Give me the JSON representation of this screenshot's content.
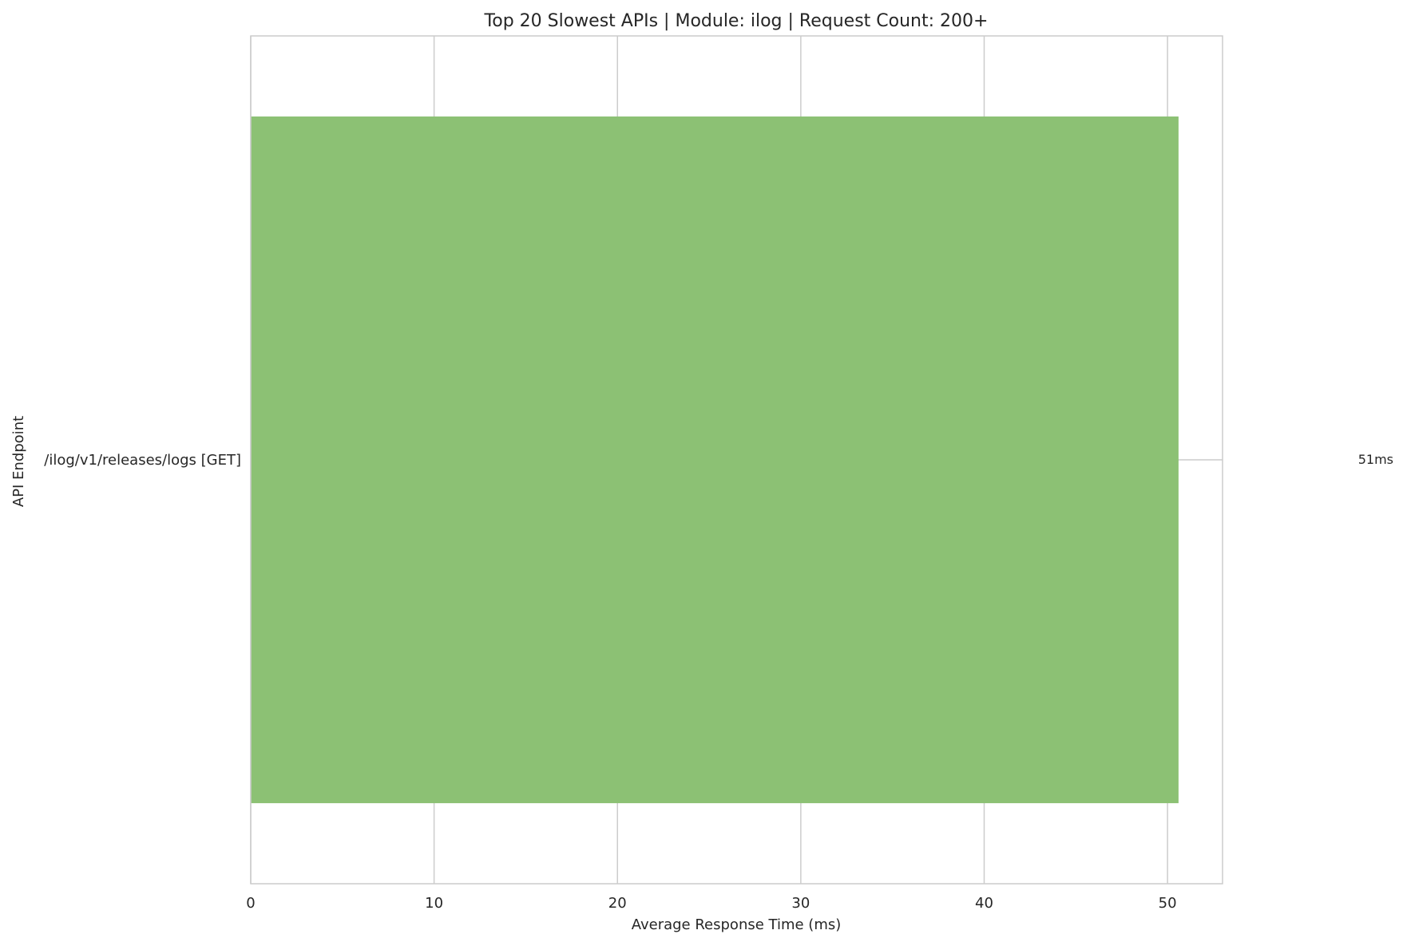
{
  "chart_data": {
    "type": "bar",
    "orientation": "horizontal",
    "title": "Top 20 Slowest APIs | Module: ilog | Request Count: 200+",
    "xlabel": "Average Response Time (ms)",
    "ylabel": "API Endpoint",
    "categories": [
      "/ilog/v1/releases/logs [GET]"
    ],
    "values": [
      50.6
    ],
    "value_labels": [
      "51ms"
    ],
    "xlim": [
      0,
      53
    ],
    "xticks": [
      0,
      10,
      20,
      30,
      40,
      50
    ],
    "xtick_labels": [
      "0",
      "10",
      "20",
      "30",
      "40",
      "50"
    ],
    "grid": true,
    "legend": "none",
    "colors": {
      "bar": "#8cc174",
      "grid": "#cccccc",
      "spine": "#cccccc",
      "text": "#262626",
      "background": "#ffffff"
    }
  }
}
